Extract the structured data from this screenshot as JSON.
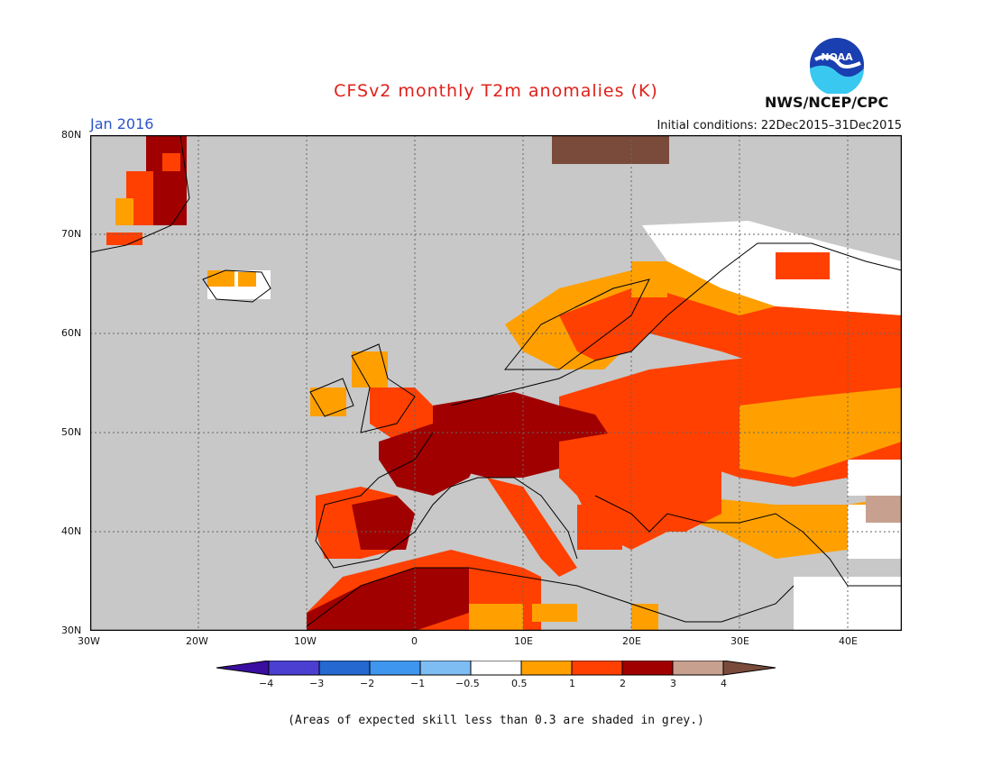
{
  "header": {
    "title": "CFSv2 monthly T2m anomalies (K)",
    "period": "Jan 2016",
    "initial_conditions": "Initial conditions: 22Dec2015–31Dec2015",
    "agency": "NWS/NCEP/CPC",
    "logo_text": "NOAA"
  },
  "map": {
    "lon_labels": [
      "30W",
      "20W",
      "10W",
      "0",
      "10E",
      "20E",
      "30E",
      "40E"
    ],
    "lat_labels": [
      "80N",
      "70N",
      "60N",
      "50N",
      "40N",
      "30N"
    ],
    "background_color": "#c8c8c8"
  },
  "colorbar": {
    "tick_labels": [
      "−4",
      "−3",
      "−2",
      "−1",
      "−0.5",
      "0.5",
      "1",
      "2",
      "3",
      "4"
    ],
    "colors": {
      "lt_minus4": "#3a0ea0",
      "m4_m3": "#4a3fd0",
      "m3_m2": "#2468d0",
      "m2_m1": "#3e96ee",
      "m1_m05": "#7ebcf4",
      "m05_05": "#ffffff",
      "p05_1": "#ffa000",
      "p1_2": "#ff4000",
      "p2_3": "#a00000",
      "p3_4": "#c8a090",
      "gt4": "#7a4b3a"
    }
  },
  "footnote": "(Areas of expected skill less than 0.3 are shaded in grey.)"
}
